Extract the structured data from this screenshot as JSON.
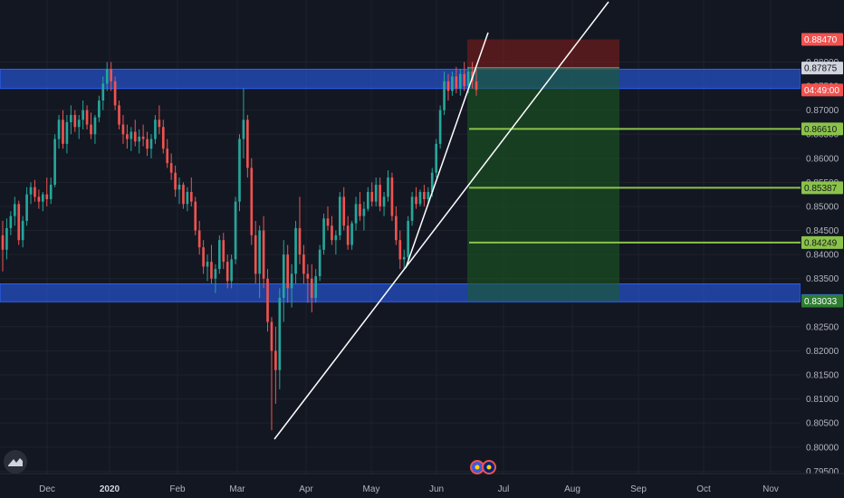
{
  "colors": {
    "background": "#131722",
    "up": "#26a69a",
    "down": "#ef5350",
    "zone": "#2962ff",
    "target_line": "#8bc34a",
    "profit": "#1b5e20",
    "loss": "#7f1d1d",
    "trendline": "#ffffff"
  },
  "icons": [
    "tradingview-logo-icon",
    "flag-eu-icon",
    "flag-au-icon"
  ],
  "chart_data": {
    "type": "candlestick",
    "ylim": [
      0.7945,
      0.8895
    ],
    "y_ticks": [
      "0.79500",
      "0.80000",
      "0.80500",
      "0.81000",
      "0.81500",
      "0.82000",
      "0.82500",
      "0.83000",
      "0.83500",
      "0.84000",
      "0.84500",
      "0.85000",
      "0.85500",
      "0.86000",
      "0.86500",
      "0.87000",
      "0.87500",
      "0.88000"
    ],
    "x_ticks": [
      {
        "label": "Dec",
        "bold": false
      },
      {
        "label": "2020",
        "bold": true
      },
      {
        "label": "Feb",
        "bold": false
      },
      {
        "label": "Mar",
        "bold": false
      },
      {
        "label": "Apr",
        "bold": false
      },
      {
        "label": "May",
        "bold": false
      },
      {
        "label": "Jun",
        "bold": false
      },
      {
        "label": "Jul",
        "bold": false
      },
      {
        "label": "Aug",
        "bold": false
      },
      {
        "label": "Sep",
        "bold": false
      },
      {
        "label": "Oct",
        "bold": false
      },
      {
        "label": "Nov",
        "bold": false
      }
    ],
    "price_tags": [
      {
        "label": "0.88470",
        "value": 0.8847,
        "bg": "#ef5350",
        "fg": "#ffffff"
      },
      {
        "label": "0.87875",
        "value": 0.87875,
        "bg": "#d1d4dc",
        "fg": "#131722"
      },
      {
        "label": "04:49:00",
        "value": 0.8742,
        "bg": "#ef5350",
        "fg": "#ffffff"
      },
      {
        "label": "0.86610",
        "value": 0.8661,
        "bg": "#8bc34a",
        "fg": "#131722"
      },
      {
        "label": "0.85387",
        "value": 0.85387,
        "bg": "#8bc34a",
        "fg": "#131722"
      },
      {
        "label": "0.84249",
        "value": 0.84249,
        "bg": "#8bc34a",
        "fg": "#131722"
      },
      {
        "label": "0.83045",
        "value": 0.83045,
        "bg": "#2962ff",
        "fg": "#ffffff"
      },
      {
        "label": "0.83033",
        "value": 0.83033,
        "bg": "#2e7d32",
        "fg": "#ffffff"
      }
    ],
    "zones": [
      {
        "from": 0.8745,
        "to": 0.8785
      },
      {
        "from": 0.8302,
        "to": 0.8339
      }
    ],
    "position": {
      "entry": 0.8788,
      "stop": 0.8847,
      "target": 0.83033
    },
    "take_profit_levels": [
      0.8661,
      0.85387,
      0.84249
    ],
    "trendlines": [
      {
        "from": [
          0.3,
          0.8015
        ],
        "to": [
          0.7,
          0.8948
        ]
      },
      {
        "from": [
          0.0,
          0.8368
        ],
        "to": [
          0.0,
          0.883
        ]
      }
    ],
    "candles_ohlc": [
      [
        0.844,
        0.847,
        0.8365,
        0.841
      ],
      [
        0.841,
        0.8475,
        0.839,
        0.8455
      ],
      [
        0.8455,
        0.849,
        0.844,
        0.848
      ],
      [
        0.848,
        0.852,
        0.846,
        0.8505
      ],
      [
        0.8505,
        0.8512,
        0.842,
        0.843
      ],
      [
        0.843,
        0.848,
        0.8415,
        0.847
      ],
      [
        0.847,
        0.854,
        0.846,
        0.8525
      ],
      [
        0.8525,
        0.855,
        0.8505,
        0.854
      ],
      [
        0.854,
        0.8555,
        0.851,
        0.852
      ],
      [
        0.852,
        0.8535,
        0.8495,
        0.851
      ],
      [
        0.851,
        0.853,
        0.849,
        0.8525
      ],
      [
        0.8525,
        0.856,
        0.85,
        0.8515
      ],
      [
        0.8515,
        0.856,
        0.8505,
        0.8545
      ],
      [
        0.8545,
        0.865,
        0.854,
        0.864
      ],
      [
        0.864,
        0.869,
        0.862,
        0.868
      ],
      [
        0.868,
        0.87,
        0.862,
        0.863
      ],
      [
        0.863,
        0.869,
        0.861,
        0.8675
      ],
      [
        0.8675,
        0.871,
        0.865,
        0.869
      ],
      [
        0.869,
        0.87,
        0.8655,
        0.8665
      ],
      [
        0.8665,
        0.869,
        0.864,
        0.868
      ],
      [
        0.868,
        0.872,
        0.866,
        0.87
      ],
      [
        0.87,
        0.871,
        0.866,
        0.867
      ],
      [
        0.867,
        0.8695,
        0.864,
        0.865
      ],
      [
        0.865,
        0.869,
        0.863,
        0.8685
      ],
      [
        0.8685,
        0.873,
        0.8675,
        0.872
      ],
      [
        0.872,
        0.877,
        0.87,
        0.8755
      ],
      [
        0.8755,
        0.88,
        0.874,
        0.8785
      ],
      [
        0.8785,
        0.88,
        0.874,
        0.876
      ],
      [
        0.876,
        0.877,
        0.87,
        0.871
      ],
      [
        0.871,
        0.872,
        0.866,
        0.867
      ],
      [
        0.867,
        0.869,
        0.863,
        0.865
      ],
      [
        0.865,
        0.867,
        0.862,
        0.864
      ],
      [
        0.864,
        0.8665,
        0.8615,
        0.8655
      ],
      [
        0.8655,
        0.868,
        0.8625,
        0.8635
      ],
      [
        0.8635,
        0.866,
        0.861,
        0.8645
      ],
      [
        0.8645,
        0.867,
        0.8625,
        0.864
      ],
      [
        0.864,
        0.8655,
        0.8605,
        0.862
      ],
      [
        0.862,
        0.865,
        0.86,
        0.864
      ],
      [
        0.864,
        0.869,
        0.863,
        0.868
      ],
      [
        0.868,
        0.871,
        0.865,
        0.8665
      ],
      [
        0.8665,
        0.868,
        0.861,
        0.862
      ],
      [
        0.862,
        0.864,
        0.858,
        0.859
      ],
      [
        0.859,
        0.861,
        0.8555,
        0.857
      ],
      [
        0.857,
        0.8585,
        0.852,
        0.8535
      ],
      [
        0.8535,
        0.856,
        0.8505,
        0.8545
      ],
      [
        0.8545,
        0.855,
        0.8495,
        0.8505
      ],
      [
        0.8505,
        0.854,
        0.849,
        0.853
      ],
      [
        0.853,
        0.856,
        0.85,
        0.851
      ],
      [
        0.851,
        0.852,
        0.844,
        0.845
      ],
      [
        0.845,
        0.847,
        0.84,
        0.8415
      ],
      [
        0.8415,
        0.843,
        0.836,
        0.8375
      ],
      [
        0.8375,
        0.84,
        0.8345,
        0.8385
      ],
      [
        0.8385,
        0.842,
        0.834,
        0.835
      ],
      [
        0.835,
        0.838,
        0.832,
        0.837
      ],
      [
        0.837,
        0.844,
        0.836,
        0.843
      ],
      [
        0.843,
        0.8445,
        0.837,
        0.8385
      ],
      [
        0.8385,
        0.84,
        0.833,
        0.8345
      ],
      [
        0.8345,
        0.84,
        0.833,
        0.839
      ],
      [
        0.839,
        0.852,
        0.838,
        0.851
      ],
      [
        0.851,
        0.865,
        0.849,
        0.864
      ],
      [
        0.864,
        0.8745,
        0.86,
        0.868
      ],
      [
        0.868,
        0.869,
        0.856,
        0.858
      ],
      [
        0.858,
        0.86,
        0.842,
        0.844
      ],
      [
        0.844,
        0.847,
        0.834,
        0.836
      ],
      [
        0.836,
        0.846,
        0.831,
        0.845
      ],
      [
        0.845,
        0.848,
        0.833,
        0.835
      ],
      [
        0.835,
        0.837,
        0.824,
        0.826
      ],
      [
        0.826,
        0.827,
        0.8035,
        0.82
      ],
      [
        0.82,
        0.825,
        0.809,
        0.816
      ],
      [
        0.816,
        0.833,
        0.812,
        0.831
      ],
      [
        0.831,
        0.843,
        0.826,
        0.84
      ],
      [
        0.84,
        0.842,
        0.83,
        0.833
      ],
      [
        0.833,
        0.838,
        0.829,
        0.836
      ],
      [
        0.836,
        0.847,
        0.834,
        0.8455
      ],
      [
        0.8455,
        0.852,
        0.838,
        0.84
      ],
      [
        0.84,
        0.842,
        0.834,
        0.836
      ],
      [
        0.836,
        0.838,
        0.83,
        0.835
      ],
      [
        0.835,
        0.838,
        0.828,
        0.831
      ],
      [
        0.831,
        0.837,
        0.83,
        0.8355
      ],
      [
        0.8355,
        0.842,
        0.8345,
        0.841
      ],
      [
        0.841,
        0.8485,
        0.84,
        0.8475
      ],
      [
        0.8475,
        0.85,
        0.845,
        0.846
      ],
      [
        0.846,
        0.848,
        0.842,
        0.843
      ],
      [
        0.843,
        0.845,
        0.84,
        0.844
      ],
      [
        0.844,
        0.853,
        0.843,
        0.852
      ],
      [
        0.852,
        0.854,
        0.845,
        0.846
      ],
      [
        0.846,
        0.848,
        0.841,
        0.842
      ],
      [
        0.842,
        0.847,
        0.841,
        0.8465
      ],
      [
        0.8465,
        0.852,
        0.845,
        0.8505
      ],
      [
        0.8505,
        0.853,
        0.847,
        0.848
      ],
      [
        0.848,
        0.851,
        0.845,
        0.8495
      ],
      [
        0.8495,
        0.854,
        0.849,
        0.853
      ],
      [
        0.853,
        0.855,
        0.85,
        0.851
      ],
      [
        0.851,
        0.856,
        0.85,
        0.8545
      ],
      [
        0.8545,
        0.856,
        0.849,
        0.85
      ],
      [
        0.85,
        0.853,
        0.848,
        0.852
      ],
      [
        0.852,
        0.8575,
        0.851,
        0.856
      ],
      [
        0.856,
        0.857,
        0.847,
        0.848
      ],
      [
        0.848,
        0.85,
        0.842,
        0.843
      ],
      [
        0.843,
        0.845,
        0.837,
        0.839
      ],
      [
        0.839,
        0.841,
        0.837,
        0.8395
      ],
      [
        0.8395,
        0.848,
        0.839,
        0.847
      ],
      [
        0.847,
        0.853,
        0.846,
        0.852
      ],
      [
        0.852,
        0.854,
        0.8495,
        0.8505
      ],
      [
        0.8505,
        0.8535,
        0.85,
        0.853
      ],
      [
        0.853,
        0.8545,
        0.85,
        0.8515
      ],
      [
        0.8515,
        0.854,
        0.8505,
        0.853
      ],
      [
        0.853,
        0.858,
        0.852,
        0.857
      ],
      [
        0.857,
        0.864,
        0.856,
        0.863
      ],
      [
        0.863,
        0.871,
        0.862,
        0.87
      ],
      [
        0.87,
        0.878,
        0.869,
        0.876
      ],
      [
        0.876,
        0.8775,
        0.872,
        0.874
      ],
      [
        0.874,
        0.878,
        0.873,
        0.877
      ],
      [
        0.877,
        0.879,
        0.8735,
        0.8745
      ],
      [
        0.8745,
        0.8785,
        0.873,
        0.8775
      ],
      [
        0.8775,
        0.88,
        0.874,
        0.875
      ],
      [
        0.875,
        0.879,
        0.8735,
        0.878
      ],
      [
        0.878,
        0.88,
        0.8745,
        0.876
      ],
      [
        0.876,
        0.8785,
        0.873,
        0.8742
      ]
    ]
  }
}
